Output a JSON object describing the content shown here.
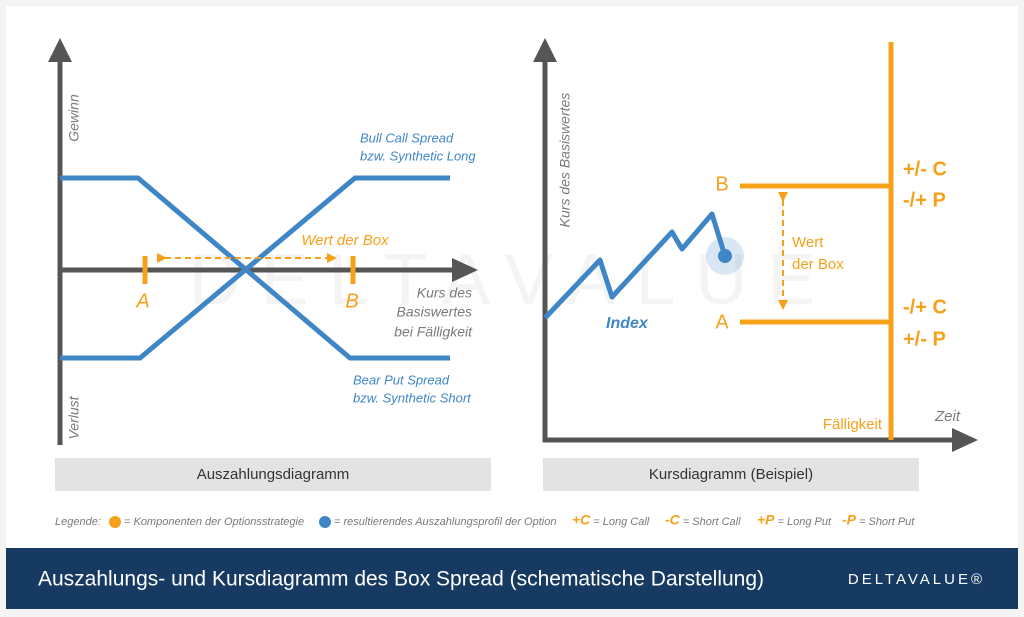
{
  "left_panel": {
    "y_top_label": "Gewinn",
    "y_bottom_label": "Verlust",
    "x_label_lines": [
      "Kurs des",
      "Basiswertes",
      "bei Fälligkeit"
    ],
    "point_a": "A",
    "point_b": "B",
    "box_label": "Wert der Box",
    "upper_line_label": [
      "Bull Call Spread",
      "bzw. Synthetic Long"
    ],
    "lower_line_label": [
      "Bear Put Spread",
      "bzw. Synthetic Short"
    ],
    "caption": "Auszahlungsdiagramm"
  },
  "right_panel": {
    "y_label": "Kurs des Basiswertes",
    "x_label": "Zeit",
    "index_label": "Index",
    "point_b": "B",
    "point_a": "A",
    "box_label_lines": [
      "Wert",
      "der Box"
    ],
    "maturity_label": "Fälligkeit",
    "upper_positions": [
      "+/- C",
      "-/+ P"
    ],
    "lower_positions": [
      "-/+ C",
      "+/- P"
    ],
    "caption": "Kursdiagramm (Beispiel)"
  },
  "watermark": "DELTAVALUE",
  "legend": {
    "title": "Legende:",
    "orange_text": "= Komponenten der Optionsstrategie",
    "blue_text": "= resultierendes Auszahlungsprofil der Option",
    "symbols": [
      {
        "symbol": "+C",
        "text": "= Long Call"
      },
      {
        "symbol": "-C",
        "text": "= Short Call"
      },
      {
        "symbol": "+P",
        "text": "= Long Put"
      },
      {
        "symbol": "-P",
        "text": "= Short Put"
      }
    ]
  },
  "footer": {
    "title": "Auszahlungs- und Kursdiagramm des Box Spread (schematische Darstellung)",
    "logo": "DELTAVALUE®"
  }
}
